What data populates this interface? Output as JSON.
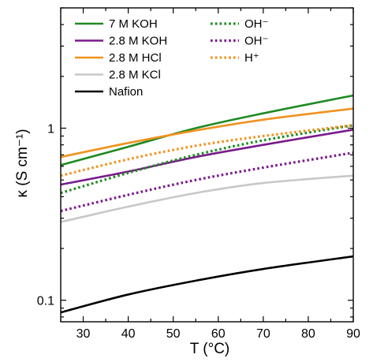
{
  "chart_data": {
    "type": "line",
    "title": "",
    "xlabel": "T (°C)",
    "ylabel": "κ (S cm⁻¹)",
    "xlim": [
      25,
      90
    ],
    "ylim": [
      0.075,
      5.0
    ],
    "yscale": "log",
    "grid": false,
    "legend_position": "top-left",
    "x_ticks": [
      30,
      40,
      50,
      60,
      70,
      80,
      90
    ],
    "x_tick_labels": [
      "30",
      "40",
      "50",
      "60",
      "70",
      "80",
      "90"
    ],
    "y_ticks": [
      0.1,
      1
    ],
    "y_tick_labels": [
      "0.1",
      "1"
    ],
    "series": [
      {
        "name": "7 M KOH",
        "color": "#1f8a22",
        "style": "solid",
        "x": [
          25,
          40,
          55,
          70,
          90
        ],
        "y": [
          0.61,
          0.78,
          1.0,
          1.22,
          1.55
        ]
      },
      {
        "name": "2.8 M KOH",
        "color": "#7a1a8c",
        "style": "solid",
        "x": [
          25,
          40,
          55,
          70,
          90
        ],
        "y": [
          0.47,
          0.56,
          0.68,
          0.8,
          0.98
        ]
      },
      {
        "name": "2.8 M HCl",
        "color": "#f0921e",
        "style": "solid",
        "x": [
          25,
          40,
          55,
          70,
          90
        ],
        "y": [
          0.68,
          0.82,
          0.97,
          1.12,
          1.3
        ]
      },
      {
        "name": "2.8 M KCl",
        "color": "#c8c8c8",
        "style": "solid",
        "x": [
          25,
          40,
          55,
          70,
          90
        ],
        "y": [
          0.285,
          0.35,
          0.42,
          0.48,
          0.53
        ]
      },
      {
        "name": "Nafion",
        "color": "#000000",
        "style": "solid",
        "x": [
          25,
          40,
          55,
          70,
          90
        ],
        "y": [
          0.085,
          0.108,
          0.13,
          0.152,
          0.18
        ]
      },
      {
        "name": "OH⁻",
        "color": "#1f8a22",
        "style": "dotted",
        "x": [
          25,
          40,
          55,
          70,
          90
        ],
        "y": [
          0.42,
          0.55,
          0.7,
          0.85,
          1.04
        ]
      },
      {
        "name": "OH⁻",
        "color": "#7a1a8c",
        "style": "dotted",
        "x": [
          25,
          40,
          55,
          70,
          90
        ],
        "y": [
          0.33,
          0.41,
          0.5,
          0.59,
          0.72
        ]
      },
      {
        "name": "H⁺",
        "color": "#f0921e",
        "style": "dotted",
        "x": [
          25,
          40,
          55,
          70,
          90
        ],
        "y": [
          0.53,
          0.66,
          0.79,
          0.9,
          1.04
        ]
      }
    ]
  }
}
